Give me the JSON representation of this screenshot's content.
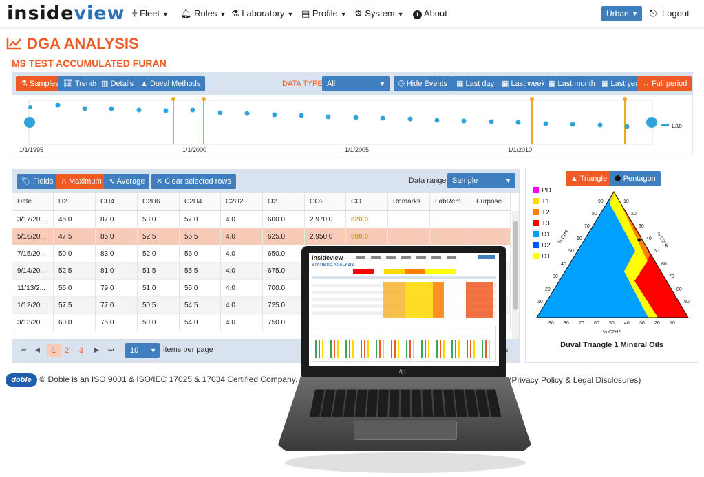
{
  "nav": {
    "logo_a": "inside",
    "logo_b": "view",
    "items": [
      {
        "label": "Fleet",
        "icon": "fleet-icon"
      },
      {
        "label": "Rules",
        "icon": "bell-icon"
      },
      {
        "label": "Laboratory",
        "icon": "flask-icon"
      },
      {
        "label": "Profile",
        "icon": "id-card-icon"
      },
      {
        "label": "System",
        "icon": "gears-icon"
      },
      {
        "label": "About",
        "icon": "info-icon"
      }
    ],
    "user": "Urban",
    "logout": "Logout"
  },
  "page": {
    "title": "DGA ANALYSIS",
    "subtitle": "MS TEST ACCUMULATED FURAN"
  },
  "toolbar": {
    "tabs": [
      "Samples",
      "Trends",
      "Details",
      "Duval Methods"
    ],
    "data_type_label": "DATA TYPE:",
    "data_type_value": "All",
    "hide_events": "Hide Events",
    "ranges": [
      "Last day",
      "Last week",
      "Last month",
      "Last year",
      "Full period"
    ]
  },
  "timeline": {
    "ticks": [
      "1/1/1995",
      "1/1/2000",
      "1/1/2005",
      "1/1/2010"
    ],
    "legend": "Lab"
  },
  "table_toolbar": {
    "fields": "Fields",
    "maximum": "Maximum",
    "average": "Average",
    "clear": "Clear selected rows",
    "range_label": "Data range:",
    "range_value": "Sample"
  },
  "table": {
    "columns": [
      "Date",
      "H2",
      "CH4",
      "C2H6",
      "C2H4",
      "C2H2",
      "O2",
      "CO2",
      "CO",
      "Remarks",
      "LabRem...",
      "Purpose"
    ],
    "rows": [
      [
        "3/17/20...",
        "45.0",
        "87.0",
        "53.0",
        "57.0",
        "4.0",
        "600.0",
        "2,970.0",
        "820.0",
        "",
        "",
        ""
      ],
      [
        "5/16/20...",
        "47.5",
        "85.0",
        "52.5",
        "56.5",
        "4.0",
        "625.0",
        "2,950.0",
        "800.0",
        "",
        "",
        ""
      ],
      [
        "7/15/20...",
        "50.0",
        "83.0",
        "52.0",
        "56.0",
        "4.0",
        "650.0",
        "",
        "",
        "",
        "",
        ""
      ],
      [
        "9/14/20...",
        "52.5",
        "81.0",
        "51.5",
        "55.5",
        "4.0",
        "675.0",
        "",
        "",
        "",
        "",
        ""
      ],
      [
        "11/13/2...",
        "55.0",
        "79.0",
        "51.0",
        "55.0",
        "4.0",
        "700.0",
        "",
        "",
        "",
        "",
        ""
      ],
      [
        "1/12/20...",
        "57.5",
        "77.0",
        "50.5",
        "54.5",
        "4.0",
        "725.0",
        "",
        "",
        "",
        "",
        ""
      ],
      [
        "3/13/20...",
        "60.0",
        "75.0",
        "50.0",
        "54.0",
        "4.0",
        "750.0",
        "",
        "",
        "",
        "",
        ""
      ]
    ]
  },
  "pager": {
    "pages": [
      "1",
      "2",
      "3"
    ],
    "per_page": "10",
    "per_page_label": "items per page",
    "items_tail": "ms"
  },
  "duval": {
    "triangle_btn": "Triangle",
    "pentagon_btn": "Pentagon",
    "legend": [
      {
        "label": "PD",
        "color": "#ff00ff"
      },
      {
        "label": "T1",
        "color": "#ffd800"
      },
      {
        "label": "T2",
        "color": "#ff7f00"
      },
      {
        "label": "T3",
        "color": "#ff0000"
      },
      {
        "label": "D1",
        "color": "#00a0ff"
      },
      {
        "label": "D2",
        "color": "#0055ff"
      },
      {
        "label": "DT",
        "color": "#ffff00"
      }
    ],
    "axis_left": "% CH4",
    "axis_right": "% C2H4",
    "axis_bottom": "% C2H2",
    "caption": "Duval Triangle 1 Mineral Oils"
  },
  "laptop": {
    "logo": "insideview",
    "title": "STATISTIC ANALYSIS",
    "brand": "hp"
  },
  "footer": {
    "text": "© Doble is an ISO 9001 & ISO/IEC 17025 & 17034 Certified Company. © 2012",
    "tail": "d. (Privacy Policy & Legal Disclosures)"
  },
  "colors": {
    "accent": "#f05a24",
    "primary": "#3f7fc0",
    "panel": "#d8e3ef",
    "selected_row": "#f7cbb7"
  }
}
